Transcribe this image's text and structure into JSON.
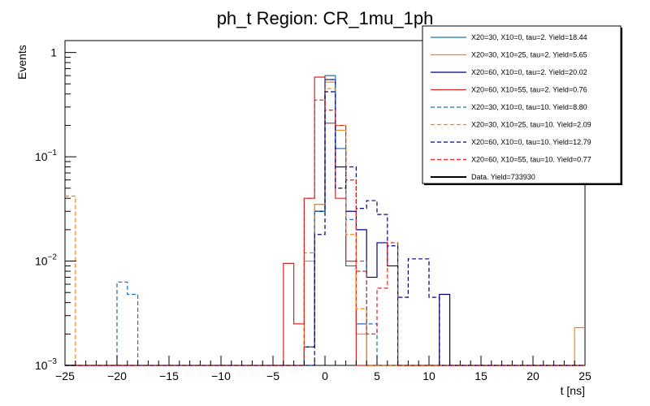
{
  "chart_data": {
    "type": "line",
    "title": "ph_t Region: CR_1mu_1ph",
    "xlabel": "t [ns]",
    "ylabel": "Events",
    "xlim": [
      -25,
      25
    ],
    "ylim": [
      0.001,
      1.3
    ],
    "yscale": "log",
    "bin_edges": [
      -25,
      -24,
      -23,
      -22,
      -21,
      -20,
      -19,
      -18,
      -17,
      -16,
      -15,
      -14,
      -13,
      -12,
      -11,
      -10,
      -9,
      -8,
      -7,
      -6,
      -5,
      -4,
      -3,
      -2,
      -1,
      0,
      1,
      2,
      3,
      4,
      5,
      6,
      7,
      8,
      9,
      10,
      11,
      12,
      13,
      14,
      15,
      16,
      17,
      18,
      19,
      20,
      21,
      22,
      23,
      24,
      25
    ],
    "x_ticks": [
      -25,
      -20,
      -15,
      -10,
      -5,
      0,
      5,
      10,
      15,
      20,
      25
    ],
    "x_tick_labels": [
      "−25",
      "−20",
      "−15",
      "−10",
      "−5",
      "0",
      "5",
      "10",
      "15",
      "20",
      "25"
    ],
    "y_ticks": [
      0.001,
      0.01,
      0.1,
      1
    ],
    "y_tick_labels": [
      {
        "base": "10",
        "exp": "−3"
      },
      {
        "base": "10",
        "exp": "−2"
      },
      {
        "base": "10",
        "exp": "−1"
      },
      {
        "base": "1",
        "exp": ""
      }
    ],
    "series": [
      {
        "name": "X20=30, X10=0, tau=2. Yield=18.44",
        "color": "#1f6fb4",
        "dash": false,
        "bins": {
          "-2": 0.0015,
          "-1": 0.03,
          "0": 0.6,
          "1": 0.12,
          "2": 0.009,
          "3": 0.0025
        }
      },
      {
        "name": "X20=30, X10=25, tau=2. Yield=5.65",
        "color": "#ff7f0e",
        "dash": false,
        "bins": {
          "-2": 0.01,
          "-1": 0.035,
          "0": 0.52,
          "1": 0.18,
          "2": 0.01,
          "3": 0.002,
          "24": 0.0023
        }
      },
      {
        "name": "X20=60, X10=0, tau=2. Yield=20.02",
        "color": "#00007f",
        "dash": false,
        "bins": {
          "-2": 0.0015,
          "-1": 0.03,
          "0": 0.55,
          "1": 0.08,
          "2": 0.03,
          "3": 0.02,
          "4": 0.007,
          "5": 0.015,
          "6": 0.009,
          "11": 0.0048
        }
      },
      {
        "name": "X20=60, X10=55, tau=2. Yield=0.76",
        "color": "#d62728",
        "dash": false,
        "bins": {
          "-4": 0.0095,
          "-3": 0.0025,
          "-2": 0.04,
          "-1": 0.58,
          "0": 0.21,
          "1": 0.04,
          "2": 0.01
        }
      },
      {
        "name": "X20=30, X10=0, tau=10. Yield=8.80",
        "color": "#1f6fb4",
        "dash": true,
        "bins": {
          "-20": 0.0063,
          "-19": 0.0048,
          "-2": 0.0015,
          "-1": 0.03,
          "0": 0.55,
          "1": 0.12,
          "2": 0.025,
          "3": 0.01,
          "4": 0.0025
        }
      },
      {
        "name": "X20=30, X10=25, tau=10. Yield=2.09",
        "color": "#ff7f0e",
        "dash": true,
        "bins": {
          "-25": 0.042,
          "-2": 0.012,
          "-1": 0.035,
          "0": 0.45,
          "1": 0.2,
          "2": 0.018,
          "3": 0.0035
        }
      },
      {
        "name": "X20=60, X10=0, tau=10. Yield=12.79",
        "color": "#00007f",
        "dash": true,
        "bins": {
          "-1": 0.018,
          "0": 0.42,
          "1": 0.05,
          "2": 0.08,
          "3": 0.032,
          "4": 0.038,
          "5": 0.028,
          "6": 0.014,
          "7": 0.0045,
          "8": 0.0105,
          "9": 0.0105,
          "10": 0.0045
        }
      },
      {
        "name": "X20=60, X10=55, tau=10. Yield=0.77",
        "color": "#d62728",
        "dash": true,
        "bins": {
          "-2": 0.04,
          "-1": 0.35,
          "0": 0.28,
          "1": 0.2,
          "2": 0.06,
          "3": 0.008,
          "4": 0.002,
          "5": 0.0055,
          "6": 0.015
        }
      },
      {
        "name": "Data. Yield=733930",
        "color": "#000000",
        "dash": false,
        "bins": {}
      }
    ]
  }
}
